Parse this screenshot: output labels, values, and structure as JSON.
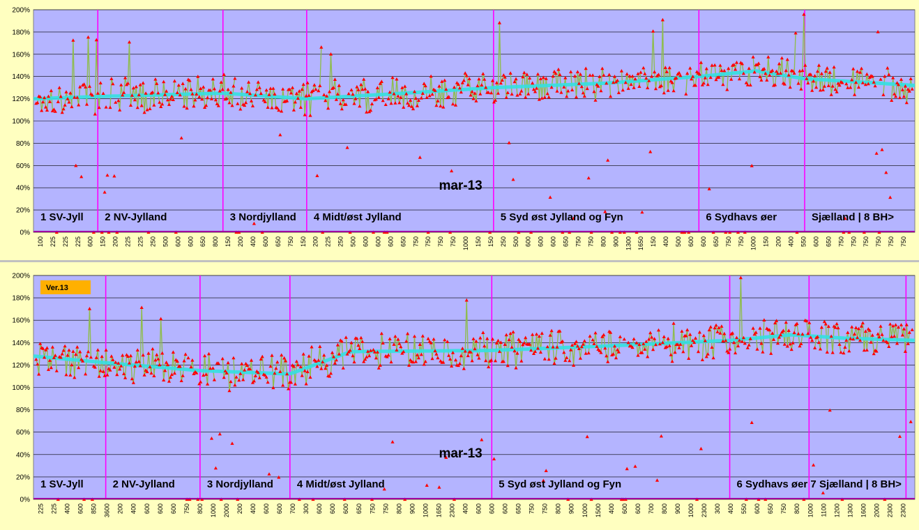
{
  "colors": {
    "background": "#ffffc0",
    "plot_area": "#b4b4ff",
    "gridline": "#000000",
    "divider": "#ff00ff",
    "series_line": "#8fbc50",
    "series_points": "#ff0000",
    "trend_line": "#33e0e0",
    "separator": "#c0c0c0",
    "badge": "#ffb000"
  },
  "chart_data": [
    {
      "type": "line",
      "month_label": "mar-13",
      "badge": "",
      "ylim": [
        0,
        2.0
      ],
      "yticks": [
        "0%",
        "20%",
        "40%",
        "60%",
        "80%",
        "100%",
        "120%",
        "140%",
        "160%",
        "180%",
        "200%"
      ],
      "xtick_labels": [
        "100",
        "225",
        "225",
        "225",
        "600",
        "150",
        "200",
        "225",
        "225",
        "250",
        "500",
        "600",
        "600",
        "650",
        "800",
        "150",
        "200",
        "400",
        "600",
        "650",
        "750",
        "150",
        "200",
        "225",
        "250",
        "500",
        "600",
        "600",
        "600",
        "650",
        "750",
        "750",
        "750",
        "750",
        "1000",
        "150",
        "150",
        "250",
        "500",
        "600",
        "600",
        "600",
        "650",
        "750",
        "750",
        "800",
        "900",
        "1300",
        "1650",
        "150",
        "400",
        "500",
        "600",
        "600",
        "650",
        "750",
        "750",
        "1000",
        "150",
        "200",
        "400",
        "550",
        "600",
        "650",
        "750",
        "750",
        "750",
        "750",
        "750",
        "750"
      ],
      "regions": [
        {
          "label": "1 SV-Jyll",
          "start": 0.0,
          "end": 0.073
        },
        {
          "label": "2 NV-Jylland",
          "start": 0.073,
          "end": 0.215
        },
        {
          "label": "3 Nordjylland",
          "start": 0.215,
          "end": 0.31
        },
        {
          "label": "4 Midt/øst Jylland",
          "start": 0.31,
          "end": 0.522
        },
        {
          "label": "5 Syd øst Jylland og Fyn",
          "start": 0.522,
          "end": 0.755
        },
        {
          "label": "6 Sydhavs øer",
          "start": 0.755,
          "end": 0.875
        },
        {
          "label": "Sjælland | 8 BH>",
          "start": 0.875,
          "end": 1.0
        }
      ],
      "trend": [
        {
          "x": 0.0,
          "y": 1.2
        },
        {
          "x": 0.073,
          "y": 1.22
        },
        {
          "x": 0.215,
          "y": 1.25
        },
        {
          "x": 0.31,
          "y": 1.2
        },
        {
          "x": 0.4,
          "y": 1.24
        },
        {
          "x": 0.522,
          "y": 1.3
        },
        {
          "x": 0.65,
          "y": 1.34
        },
        {
          "x": 0.755,
          "y": 1.4
        },
        {
          "x": 0.82,
          "y": 1.45
        },
        {
          "x": 0.875,
          "y": 1.38
        },
        {
          "x": 1.0,
          "y": 1.32
        }
      ],
      "series_spec": {
        "n": 640,
        "seed": 17,
        "noise": 0.13,
        "outlier_rate": 0.05,
        "zero_rate": 0.055
      }
    },
    {
      "type": "line",
      "month_label": "mar-13",
      "badge": "Ver.13",
      "ylim": [
        0,
        2.0
      ],
      "yticks": [
        "0%",
        "20%",
        "40%",
        "60%",
        "80%",
        "100%",
        "120%",
        "140%",
        "160%",
        "180%",
        "200%"
      ],
      "xtick_labels": [
        "225",
        "225",
        "400",
        "600",
        "850",
        "3600",
        "200",
        "400",
        "600",
        "600",
        "600",
        "750",
        "800",
        "1000",
        "2000",
        "200",
        "400",
        "600",
        "600",
        "700",
        "300",
        "600",
        "600",
        "600",
        "650",
        "750",
        "750",
        "800",
        "900",
        "1000",
        "1650",
        "2300",
        "400",
        "600",
        "600",
        "600",
        "650",
        "750",
        "750",
        "800",
        "900",
        "1000",
        "1500",
        "400",
        "600",
        "600",
        "700",
        "800",
        "900",
        "1000",
        "2300",
        "300",
        "400",
        "550",
        "600",
        "650",
        "750",
        "800",
        "1000",
        "1100",
        "1200",
        "1300",
        "1600",
        "2000",
        "2300",
        "2300"
      ],
      "regions": [
        {
          "label": "1 SV-Jyll",
          "start": 0.0,
          "end": 0.082
        },
        {
          "label": "2 NV-Jylland",
          "start": 0.082,
          "end": 0.189
        },
        {
          "label": "3 Nordjylland",
          "start": 0.189,
          "end": 0.291
        },
        {
          "label": "4 Midt/øst Jylland",
          "start": 0.291,
          "end": 0.52
        },
        {
          "label": "5 Syd øst Jylland og Fyn",
          "start": 0.52,
          "end": 0.79
        },
        {
          "label": "6 Sydhavs øer 7 Sjælland | 8 BH>",
          "start": 0.79,
          "end": 1.0
        }
      ],
      "extra_dividers": [
        0.88,
        0.99
      ],
      "trend": [
        {
          "x": 0.0,
          "y": 1.28
        },
        {
          "x": 0.082,
          "y": 1.22
        },
        {
          "x": 0.189,
          "y": 1.15
        },
        {
          "x": 0.291,
          "y": 1.12
        },
        {
          "x": 0.36,
          "y": 1.32
        },
        {
          "x": 0.52,
          "y": 1.33
        },
        {
          "x": 0.65,
          "y": 1.37
        },
        {
          "x": 0.79,
          "y": 1.42
        },
        {
          "x": 0.86,
          "y": 1.47
        },
        {
          "x": 0.92,
          "y": 1.44
        },
        {
          "x": 1.0,
          "y": 1.42
        }
      ],
      "series_spec": {
        "n": 640,
        "seed": 41,
        "noise": 0.14,
        "outlier_rate": 0.04,
        "zero_rate": 0.04
      }
    }
  ]
}
